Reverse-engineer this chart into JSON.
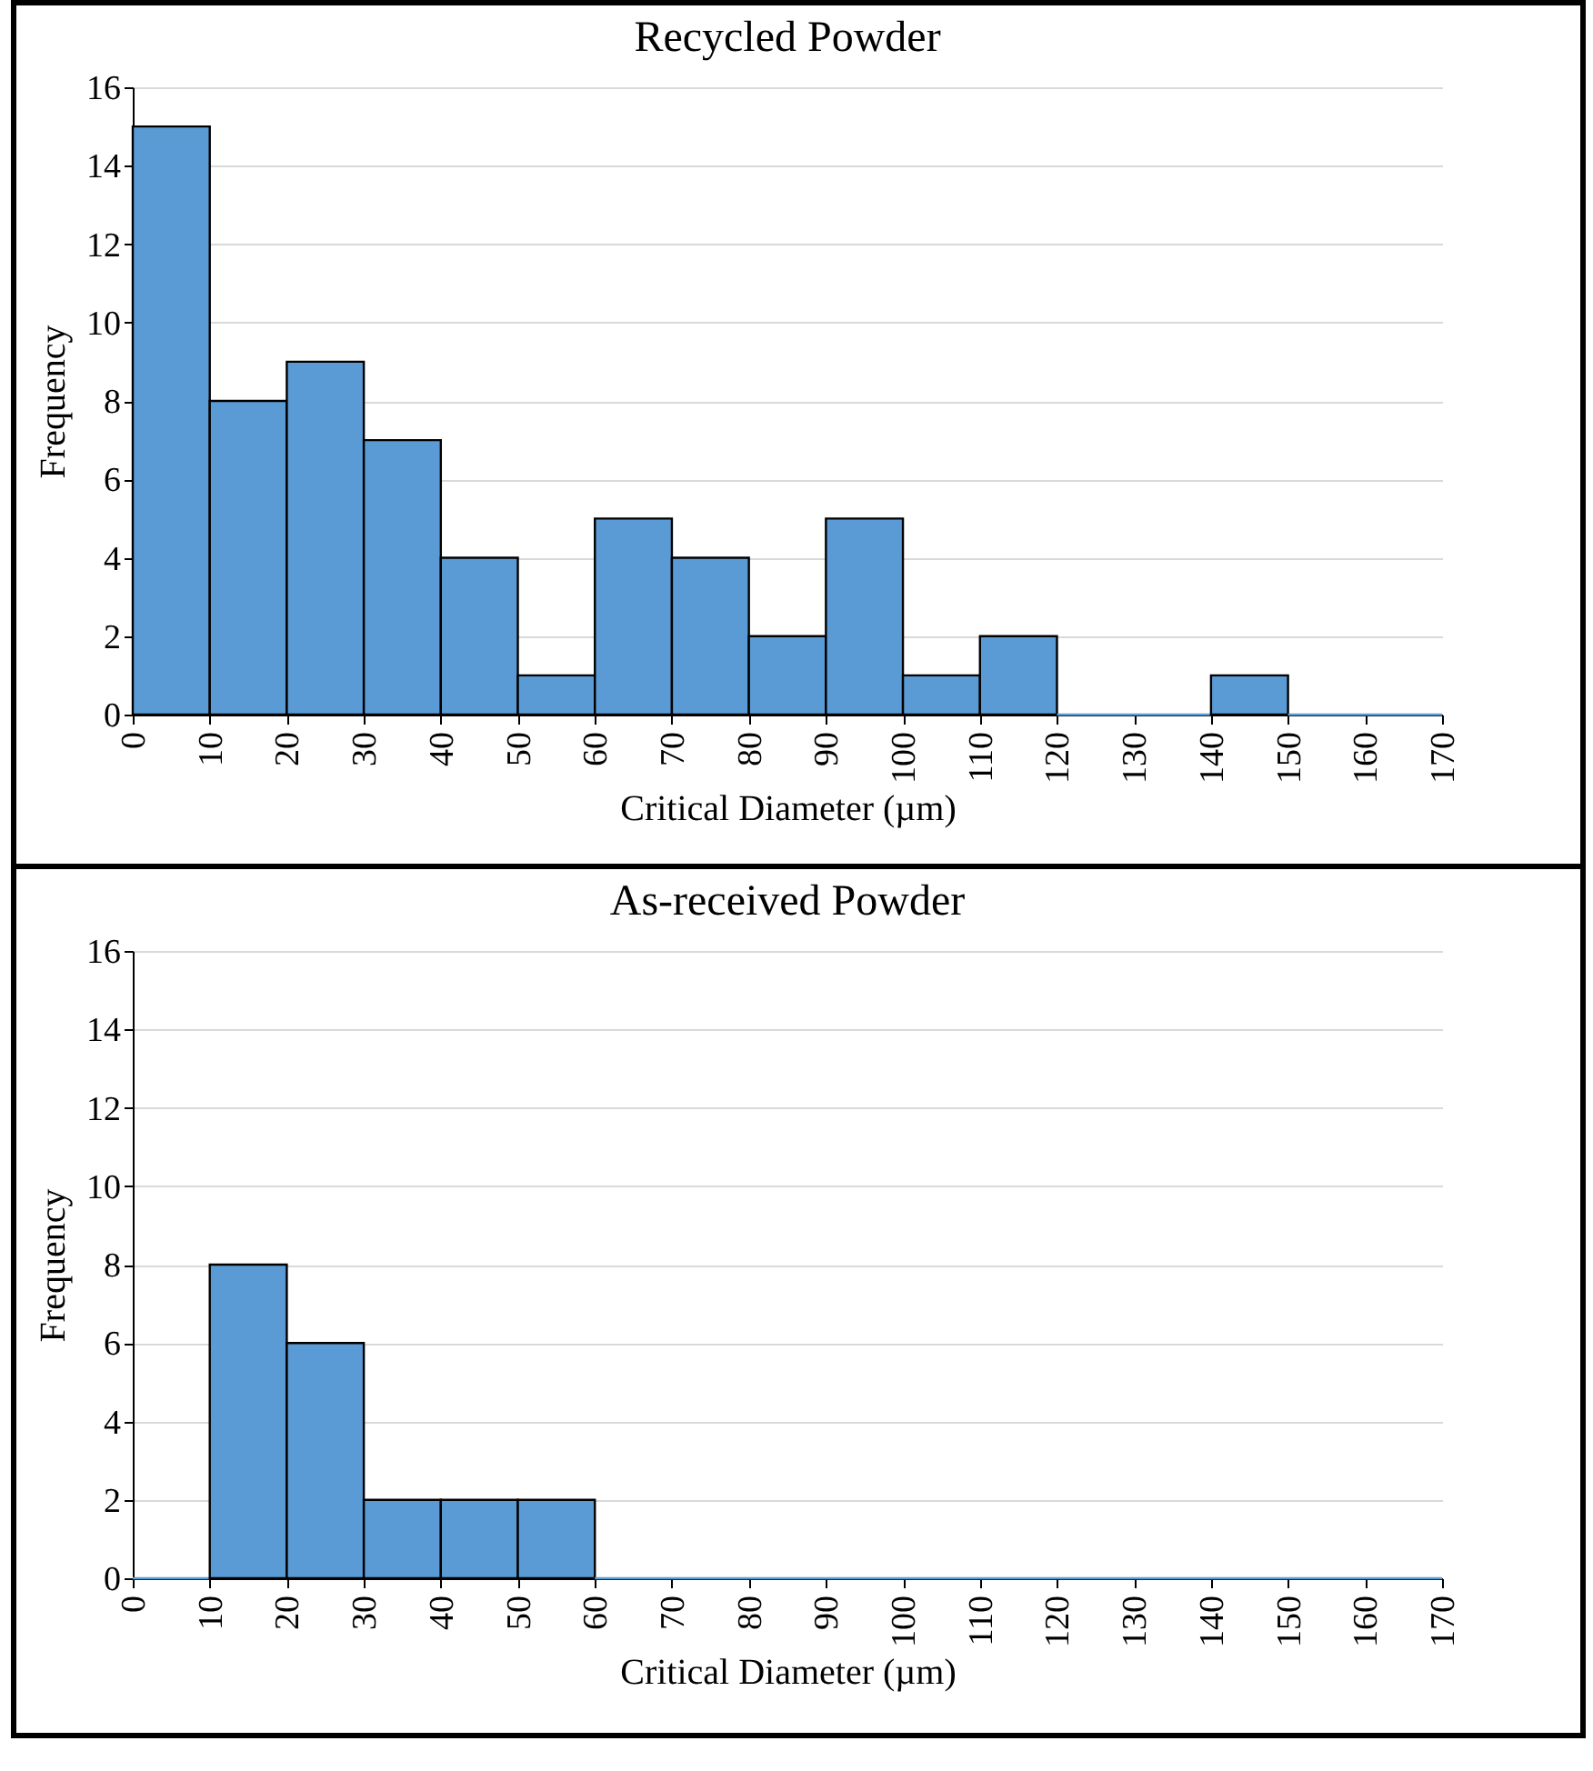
{
  "chart_data": [
    {
      "type": "histogram",
      "title": "Recycled Powder",
      "xlabel": "Critical Diameter (µm)",
      "ylabel": "Frequency",
      "bins": [
        0,
        10,
        20,
        30,
        40,
        50,
        60,
        70,
        80,
        90,
        100,
        110,
        120,
        130,
        140,
        150,
        160,
        170
      ],
      "values": [
        15,
        8,
        9,
        7,
        4,
        1,
        5,
        4,
        2,
        5,
        1,
        2,
        0,
        0,
        1,
        0,
        0
      ],
      "color": "#5b9bd5",
      "xlim": [
        0,
        170
      ],
      "xticks": [
        0,
        10,
        20,
        30,
        40,
        50,
        60,
        70,
        80,
        90,
        100,
        110,
        120,
        130,
        140,
        150,
        160,
        170
      ],
      "ylim": [
        0,
        16
      ],
      "yticks": [
        0,
        2,
        4,
        6,
        8,
        10,
        12,
        14,
        16
      ],
      "grid": "y"
    },
    {
      "type": "histogram",
      "title": "As-received Powder",
      "xlabel": "Critical Diameter (µm)",
      "ylabel": "Frequency",
      "bins": [
        0,
        10,
        20,
        30,
        40,
        50,
        60,
        70,
        80,
        90,
        100,
        110,
        120,
        130,
        140,
        150,
        160,
        170
      ],
      "values": [
        0,
        8,
        6,
        2,
        2,
        2,
        0,
        0,
        0,
        0,
        0,
        0,
        0,
        0,
        0,
        0,
        0
      ],
      "color": "#5b9bd5",
      "xlim": [
        0,
        170
      ],
      "xticks": [
        0,
        10,
        20,
        30,
        40,
        50,
        60,
        70,
        80,
        90,
        100,
        110,
        120,
        130,
        140,
        150,
        160,
        170
      ],
      "ylim": [
        0,
        16
      ],
      "yticks": [
        0,
        2,
        4,
        6,
        8,
        10,
        12,
        14,
        16
      ],
      "grid": "y"
    }
  ]
}
